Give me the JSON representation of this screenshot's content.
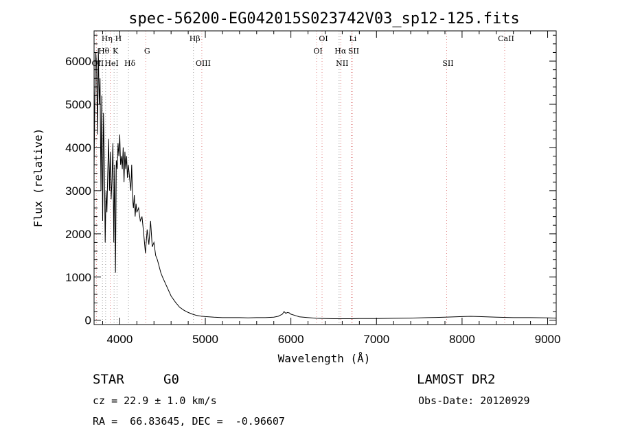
{
  "chart_data": {
    "type": "line",
    "title": "spec-56200-EG042015S023742V03_sp12-125.fits",
    "xlabel": "Wavelength (Å)",
    "ylabel": "Flux (relative)",
    "xlim": [
      3700,
      9100
    ],
    "ylim": [
      -100,
      6700
    ],
    "x_ticks": [
      {
        "value": 4000,
        "label": "4000"
      },
      {
        "value": 5000,
        "label": "5000"
      },
      {
        "value": 6000,
        "label": "6000"
      },
      {
        "value": 7000,
        "label": "7000"
      },
      {
        "value": 8000,
        "label": "8000"
      },
      {
        "value": 9000,
        "label": "9000"
      }
    ],
    "y_ticks": [
      {
        "value": 0,
        "label": "0"
      },
      {
        "value": 1000,
        "label": "1000"
      },
      {
        "value": 2000,
        "label": "2000"
      },
      {
        "value": 3000,
        "label": "3000"
      },
      {
        "value": 4000,
        "label": "4000"
      },
      {
        "value": 5000,
        "label": "5000"
      },
      {
        "value": 6000,
        "label": "6000"
      }
    ],
    "grid": false,
    "series": [
      {
        "color": "#000000",
        "x": [
          3700,
          3710,
          3720,
          3730,
          3740,
          3750,
          3760,
          3770,
          3780,
          3790,
          3800,
          3810,
          3820,
          3830,
          3840,
          3850,
          3860,
          3870,
          3880,
          3890,
          3900,
          3910,
          3920,
          3930,
          3940,
          3950,
          3960,
          3970,
          3980,
          3990,
          4000,
          4010,
          4020,
          4030,
          4040,
          4050,
          4060,
          4070,
          4080,
          4090,
          4100,
          4110,
          4120,
          4130,
          4140,
          4150,
          4160,
          4170,
          4180,
          4190,
          4200,
          4220,
          4240,
          4260,
          4280,
          4300,
          4320,
          4340,
          4360,
          4380,
          4400,
          4420,
          4440,
          4460,
          4480,
          4500,
          4550,
          4600,
          4650,
          4700,
          4750,
          4800,
          4850,
          4900,
          4950,
          5000,
          5100,
          5200,
          5300,
          5400,
          5500,
          5600,
          5700,
          5800,
          5850,
          5900,
          5920,
          5940,
          5960,
          5980,
          6000,
          6050,
          6100,
          6200,
          6300,
          6400,
          6500,
          6600,
          6700,
          6800,
          6900,
          7000,
          7200,
          7400,
          7600,
          7800,
          8000,
          8100,
          8200,
          8400,
          8600,
          8800,
          9000,
          9100
        ],
        "y": [
          3500,
          5200,
          6200,
          5900,
          4300,
          6300,
          5000,
          5600,
          3000,
          5200,
          2300,
          4800,
          3600,
          1800,
          3000,
          2500,
          3400,
          4200,
          3000,
          3900,
          2800,
          3300,
          4100,
          1800,
          3600,
          1100,
          3700,
          3500,
          4100,
          3800,
          4300,
          3600,
          3800,
          3500,
          4000,
          3200,
          3900,
          3500,
          3800,
          3300,
          3600,
          3400,
          3200,
          3000,
          3600,
          2800,
          2600,
          2900,
          2400,
          2700,
          2500,
          2600,
          2300,
          2400,
          2000,
          1550,
          2100,
          1750,
          2300,
          1700,
          1800,
          1500,
          1400,
          1250,
          1100,
          1000,
          780,
          560,
          420,
          300,
          230,
          180,
          140,
          110,
          95,
          85,
          70,
          60,
          60,
          60,
          55,
          60,
          60,
          70,
          90,
          140,
          200,
          160,
          180,
          170,
          140,
          110,
          80,
          60,
          45,
          40,
          35,
          35,
          35,
          40,
          40,
          40,
          45,
          50,
          60,
          70,
          85,
          90,
          85,
          70,
          60,
          60,
          55,
          50
        ]
      }
    ],
    "line_markers": [
      {
        "label": "Hη",
        "x": 3835,
        "row": 0
      },
      {
        "label": "H",
        "x": 3968,
        "row": 0
      },
      {
        "label": "Hβ",
        "x": 4861,
        "row": 0
      },
      {
        "label": "OI",
        "x": 6364,
        "row": 0
      },
      {
        "label": "Li",
        "x": 6708,
        "row": 0
      },
      {
        "label": "CaII",
        "x": 8498,
        "row": 0
      },
      {
        "label": "Hθ",
        "x": 3798,
        "row": 1
      },
      {
        "label": "K",
        "x": 3934,
        "row": 1
      },
      {
        "label": "G",
        "x": 4304,
        "row": 1
      },
      {
        "label": "OI",
        "x": 6300,
        "row": 1
      },
      {
        "label": "Hα",
        "x": 6563,
        "row": 1
      },
      {
        "label": "SII",
        "x": 6717,
        "row": 1
      },
      {
        "label": "OII",
        "x": 3727,
        "row": 2
      },
      {
        "label": "HeI",
        "x": 3889,
        "row": 2
      },
      {
        "label": "Hδ",
        "x": 4102,
        "row": 2
      },
      {
        "label": "OIII",
        "x": 4959,
        "row": 2
      },
      {
        "label": "NII",
        "x": 6583,
        "row": 2
      },
      {
        "label": "SII",
        "x": 7820,
        "row": 2
      }
    ],
    "marker_line_colors": {
      "balmer": "#999999",
      "other": "#e08080"
    }
  },
  "info": {
    "object_type": "STAR",
    "subclass": "G0",
    "survey": "LAMOST DR2",
    "cz": "cz = 22.9 ± 1.0 km/s",
    "obs_date": "Obs-Date: 20120929",
    "radec": "RA =  66.83645, DEC =  -0.96607"
  }
}
